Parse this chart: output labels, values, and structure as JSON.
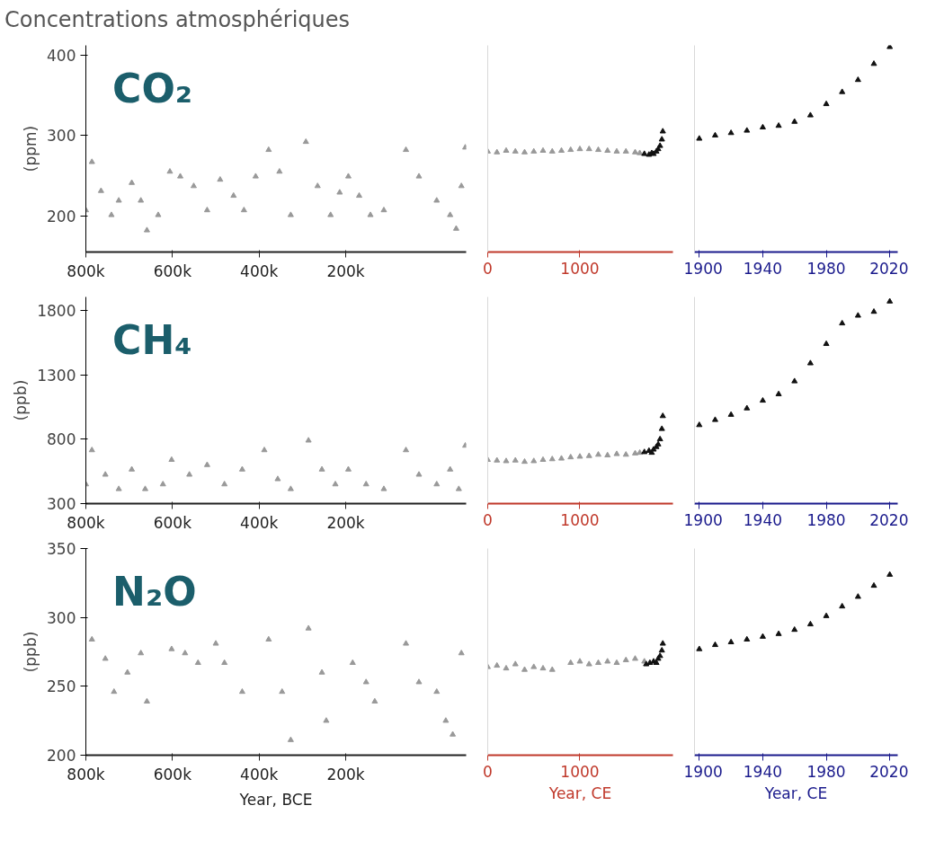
{
  "chart_data": [
    {
      "type": "scatter",
      "title": "Concentrations atmosphériques",
      "ylabel": "(ppm)",
      "annotations": [
        "CO₂"
      ],
      "marker": "triangle",
      "xlim": [
        800000,
        -78000
      ],
      "ylim": [
        155,
        412
      ],
      "xticks": [
        {
          "value": 800000,
          "label": "800k"
        },
        {
          "value": 600000,
          "label": "600k"
        },
        {
          "value": 400000,
          "label": "400k"
        },
        {
          "value": 200000,
          "label": "200k"
        }
      ],
      "yticks": [
        200,
        300,
        400
      ],
      "series": [
        {
          "color": "#999999",
          "x": [
            800000,
            786000,
            765000,
            741000,
            724000,
            694000,
            673000,
            659000,
            633000,
            606000,
            582000,
            551000,
            520000,
            490000,
            459000,
            435000,
            408000,
            378000,
            353000,
            327000,
            292000,
            265000,
            235000,
            214000,
            194000,
            169000,
            143000,
            112000,
            61000,
            31000,
            -10000,
            -41000,
            -55000,
            -67000,
            -76000
          ],
          "values": [
            207,
            267,
            231,
            201,
            219,
            241,
            219,
            182,
            201,
            255,
            249,
            237,
            207,
            245,
            225,
            207,
            249,
            282,
            255,
            201,
            292,
            237,
            201,
            229,
            249,
            225,
            201,
            207,
            282,
            249,
            219,
            201,
            184,
            237,
            285
          ]
        }
      ]
    },
    {
      "type": "scatter",
      "marker": "triangle",
      "tick_labels": "x",
      "xlim": [
        0,
        2010
      ],
      "ylim": [
        155,
        412
      ],
      "yticks": [
        200,
        300,
        400
      ],
      "xticks": [
        0,
        1000
      ],
      "series": [
        {
          "color": "#999999",
          "x": [
            0,
            100,
            200,
            300,
            400,
            500,
            600,
            700,
            800,
            900,
            1000,
            1100,
            1200,
            1300,
            1400,
            1500,
            1600,
            1650
          ],
          "values": [
            280,
            279,
            281,
            280,
            279,
            280,
            281,
            280,
            281,
            282,
            283,
            283,
            282,
            281,
            280,
            280,
            279,
            278
          ]
        },
        {
          "color": "#111111",
          "x": [
            1700,
            1750,
            1780,
            1800,
            1830,
            1850,
            1870,
            1890,
            1900
          ],
          "values": [
            277,
            276,
            278,
            277,
            280,
            283,
            287,
            295,
            305
          ]
        }
      ]
    },
    {
      "type": "scatter",
      "marker": "triangle",
      "tick_labels": "x",
      "xlim": [
        1897,
        2025
      ],
      "ylim": [
        155,
        412
      ],
      "yticks": [
        200,
        300,
        400
      ],
      "xticks": [
        1900,
        1940,
        1980,
        2020
      ],
      "series": [
        {
          "color": "#111111",
          "x": [
            1900,
            1910,
            1920,
            1930,
            1940,
            1950,
            1960,
            1970,
            1980,
            1990,
            2000,
            2010,
            2020
          ],
          "values": [
            296,
            300,
            303,
            306,
            310,
            312,
            317,
            325,
            339,
            354,
            369,
            389,
            410
          ]
        }
      ]
    },
    {
      "type": "scatter",
      "ylabel": "(ppb)",
      "annotations": [
        "CH₄"
      ],
      "marker": "triangle",
      "xlim": [
        800000,
        -78000
      ],
      "ylim": [
        300,
        1905
      ],
      "xticks": [
        {
          "value": 800000,
          "label": "800k"
        },
        {
          "value": 600000,
          "label": "600k"
        },
        {
          "value": 400000,
          "label": "400k"
        },
        {
          "value": 200000,
          "label": "200k"
        }
      ],
      "yticks": [
        300,
        800,
        1300,
        1800
      ],
      "series": [
        {
          "color": "#999999",
          "x": [
            800000,
            786000,
            755000,
            724000,
            694000,
            663000,
            622000,
            602000,
            561000,
            520000,
            480000,
            439000,
            388000,
            357000,
            327000,
            286000,
            255000,
            224000,
            194000,
            153000,
            112000,
            61000,
            31000,
            -10000,
            -41000,
            -61000,
            -76000
          ],
          "values": [
            450,
            715,
            525,
            413,
            565,
            413,
            450,
            640,
            525,
            600,
            450,
            565,
            715,
            490,
            413,
            790,
            565,
            450,
            565,
            450,
            413,
            715,
            525,
            450,
            565,
            413,
            750
          ]
        }
      ]
    },
    {
      "type": "scatter",
      "marker": "triangle",
      "tick_labels": "x",
      "xlim": [
        0,
        2010
      ],
      "ylim": [
        300,
        1905
      ],
      "yticks": [
        300,
        800,
        1300,
        1800
      ],
      "xticks": [
        0,
        1000
      ],
      "series": [
        {
          "color": "#999999",
          "x": [
            0,
            100,
            200,
            300,
            400,
            500,
            600,
            700,
            800,
            900,
            1000,
            1100,
            1200,
            1300,
            1400,
            1500,
            1600,
            1650
          ],
          "values": [
            640,
            635,
            630,
            635,
            625,
            630,
            640,
            645,
            650,
            660,
            665,
            670,
            680,
            675,
            685,
            680,
            690,
            695
          ]
        },
        {
          "color": "#111111",
          "x": [
            1700,
            1750,
            1780,
            1800,
            1830,
            1850,
            1870,
            1890,
            1900
          ],
          "values": [
            700,
            710,
            695,
            720,
            740,
            760,
            800,
            880,
            980
          ]
        }
      ]
    },
    {
      "type": "scatter",
      "marker": "triangle",
      "tick_labels": "x",
      "xlim": [
        1897,
        2025
      ],
      "ylim": [
        300,
        1905
      ],
      "yticks": [
        300,
        800,
        1300,
        1800
      ],
      "xticks": [
        1900,
        1940,
        1980,
        2020
      ],
      "series": [
        {
          "color": "#111111",
          "x": [
            1900,
            1910,
            1920,
            1930,
            1940,
            1950,
            1960,
            1970,
            1980,
            1990,
            2000,
            2010,
            2020
          ],
          "values": [
            910,
            950,
            990,
            1040,
            1100,
            1150,
            1250,
            1390,
            1540,
            1700,
            1760,
            1790,
            1870
          ]
        }
      ]
    },
    {
      "type": "scatter",
      "ylabel": "(ppb)",
      "xlabel": "Year, BCE",
      "annotations": [
        "N₂O"
      ],
      "marker": "triangle",
      "xlim": [
        800000,
        -78000
      ],
      "ylim": [
        200,
        350
      ],
      "xticks": [
        {
          "value": 800000,
          "label": "800k"
        },
        {
          "value": 600000,
          "label": "600k"
        },
        {
          "value": 400000,
          "label": "400k"
        },
        {
          "value": 200000,
          "label": "200k"
        }
      ],
      "yticks": [
        200,
        250,
        300,
        350
      ],
      "series": [
        {
          "color": "#999999",
          "x": [
            786000,
            755000,
            735000,
            704000,
            673000,
            659000,
            602000,
            571000,
            541000,
            500000,
            480000,
            439000,
            378000,
            347000,
            327000,
            286000,
            255000,
            245000,
            184000,
            153000,
            133000,
            61000,
            31000,
            -10000,
            -31000,
            -47000,
            -67000
          ],
          "values": [
            284,
            270,
            246,
            260,
            274,
            239,
            277,
            274,
            267,
            281,
            267,
            246,
            284,
            246,
            211,
            292,
            260,
            225,
            267,
            253,
            239,
            281,
            253,
            246,
            225,
            215,
            274
          ]
        }
      ]
    },
    {
      "type": "scatter",
      "xlabel": "Year, CE",
      "marker": "triangle",
      "tick_labels": "x",
      "xlim": [
        0,
        2010
      ],
      "ylim": [
        200,
        350
      ],
      "yticks": [
        200,
        250,
        300,
        350
      ],
      "xticks": [
        0,
        1000
      ],
      "series": [
        {
          "color": "#999999",
          "x": [
            0,
            100,
            200,
            300,
            400,
            500,
            600,
            700,
            900,
            1000,
            1100,
            1200,
            1300,
            1400,
            1500,
            1600,
            1700
          ],
          "values": [
            264,
            265,
            263,
            266,
            262,
            264,
            263,
            262,
            267,
            268,
            266,
            267,
            268,
            267,
            269,
            270,
            268
          ]
        },
        {
          "color": "#111111",
          "x": [
            1720,
            1760,
            1800,
            1830,
            1850,
            1870,
            1890,
            1900
          ],
          "values": [
            266,
            267,
            268,
            267,
            270,
            272,
            276,
            281
          ]
        }
      ]
    },
    {
      "type": "scatter",
      "xlabel": "Year, CE",
      "marker": "triangle",
      "tick_labels": "x",
      "xlim": [
        1897,
        2025
      ],
      "ylim": [
        200,
        350
      ],
      "yticks": [
        200,
        250,
        300,
        350
      ],
      "xticks": [
        1900,
        1940,
        1980,
        2020
      ],
      "series": [
        {
          "color": "#111111",
          "x": [
            1900,
            1910,
            1920,
            1930,
            1940,
            1950,
            1960,
            1970,
            1980,
            1990,
            2000,
            2010,
            2020
          ],
          "values": [
            277,
            280,
            282,
            284,
            286,
            288,
            291,
            295,
            301,
            308,
            315,
            323,
            331
          ]
        }
      ]
    }
  ]
}
